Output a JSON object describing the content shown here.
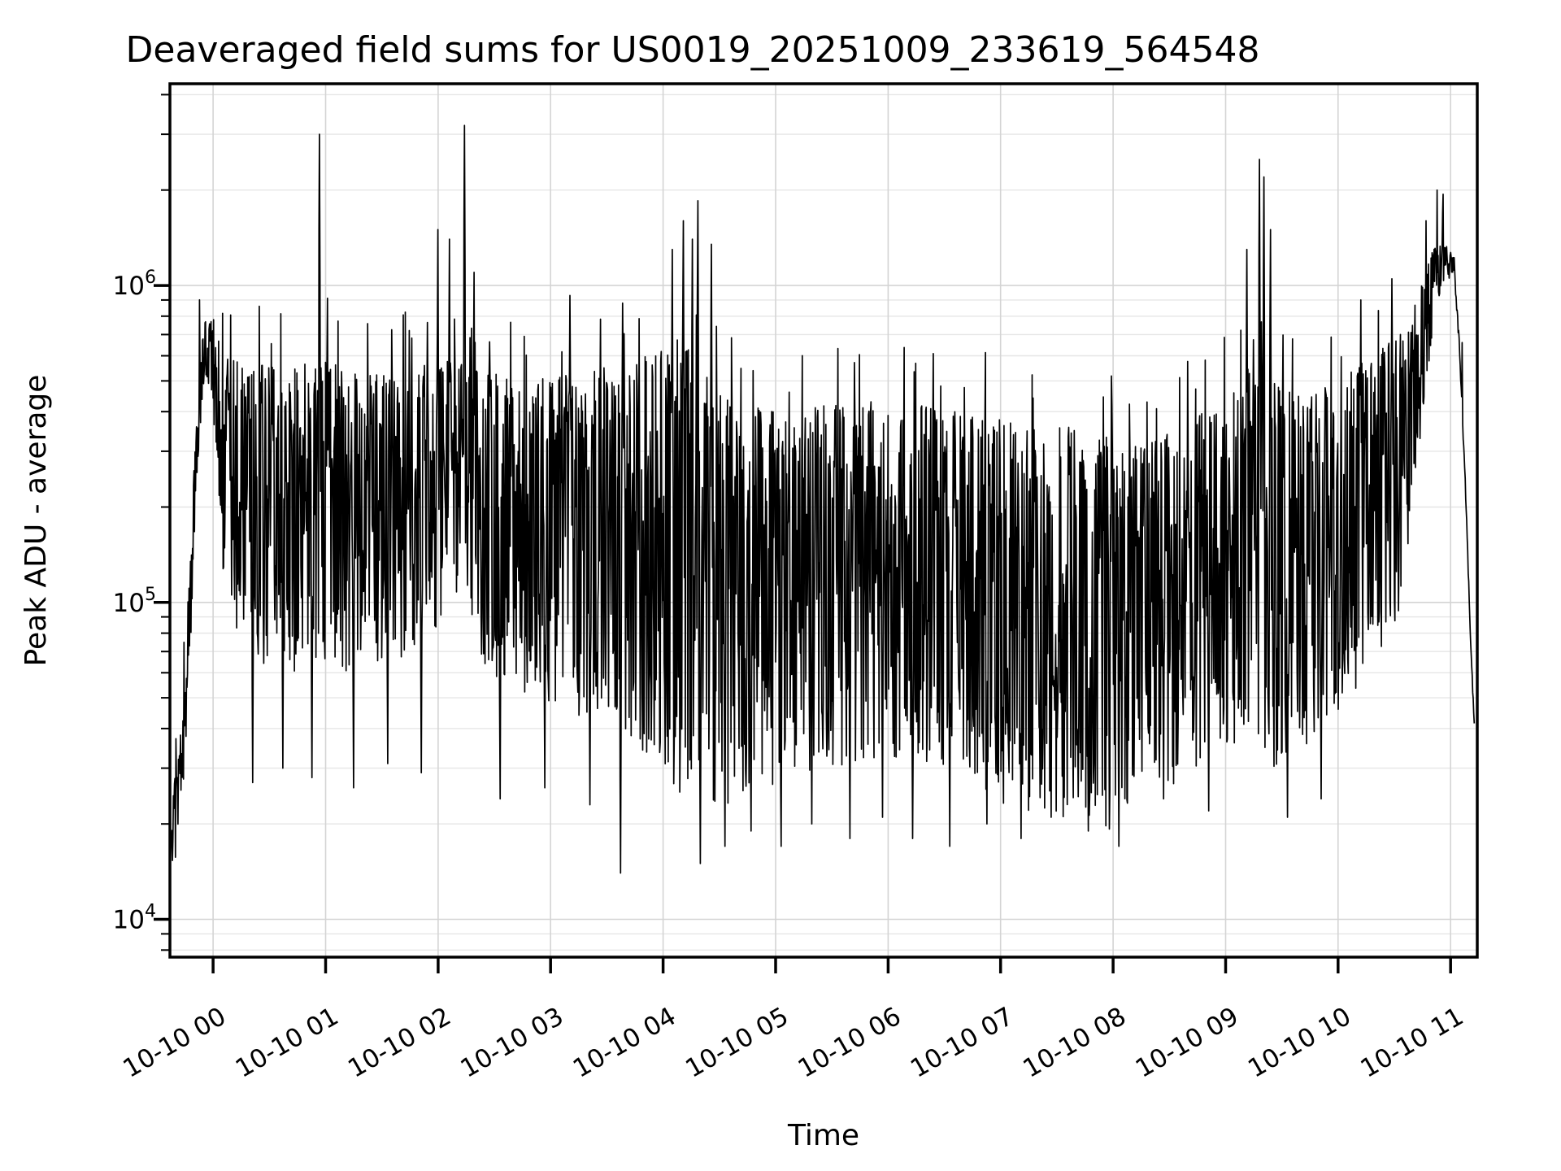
{
  "chart_data": {
    "type": "line",
    "title": "Deaveraged field sums for US0019_20251009_233619_564548",
    "xlabel": "Time",
    "ylabel": "Peak ADU - average",
    "y_scale": "log",
    "ylim": [
      7600,
      4330000
    ],
    "y_major_tick_exponents": [
      4,
      5,
      6
    ],
    "x_range_hours": [
      -0.384,
      11.237
    ],
    "x_ticks": [
      {
        "hour": 0,
        "label": "10-10 00"
      },
      {
        "hour": 1,
        "label": "10-10 01"
      },
      {
        "hour": 2,
        "label": "10-10 02"
      },
      {
        "hour": 3,
        "label": "10-10 03"
      },
      {
        "hour": 4,
        "label": "10-10 04"
      },
      {
        "hour": 5,
        "label": "10-10 05"
      },
      {
        "hour": 6,
        "label": "10-10 06"
      },
      {
        "hour": 7,
        "label": "10-10 07"
      },
      {
        "hour": 8,
        "label": "10-10 08"
      },
      {
        "hour": 9,
        "label": "10-10 09"
      },
      {
        "hour": 10,
        "label": "10-10 10"
      },
      {
        "hour": 11,
        "label": "10-10 11"
      }
    ],
    "grid": {
      "major_color": "#d4d4d4",
      "minor_color": "#e6e6e6",
      "shown": true
    },
    "line_color": "#000000",
    "legend": "none",
    "series_name": "peak ADU - average",
    "data_start_hours": -0.384,
    "data_end_hours": 11.21,
    "end_value": 41000,
    "start_value": 16000,
    "envelope_keyframes": [
      [
        -0.384,
        20000,
        12000
      ],
      [
        -0.34,
        30000,
        14000
      ],
      [
        -0.3,
        34000,
        20000
      ],
      [
        -0.25,
        65000,
        30000
      ],
      [
        -0.19,
        180000,
        80000
      ],
      [
        -0.13,
        550000,
        280000
      ],
      [
        -0.07,
        880000,
        500000
      ],
      [
        -0.02,
        860000,
        480000
      ],
      [
        0.03,
        720000,
        240000
      ],
      [
        0.1,
        600000,
        110000
      ],
      [
        0.3,
        560000,
        65000
      ],
      [
        0.7,
        560000,
        60000
      ],
      [
        1.0,
        580000,
        65000
      ],
      [
        1.4,
        520000,
        55000
      ],
      [
        1.8,
        540000,
        65000
      ],
      [
        2.1,
        620000,
        90000
      ],
      [
        2.4,
        540000,
        60000
      ],
      [
        2.8,
        500000,
        50000
      ],
      [
        3.2,
        530000,
        45000
      ],
      [
        3.6,
        560000,
        38000
      ],
      [
        3.95,
        620000,
        30000
      ],
      [
        4.2,
        700000,
        24000
      ],
      [
        4.4,
        520000,
        22000
      ],
      [
        4.7,
        420000,
        24000
      ],
      [
        5.1,
        400000,
        26000
      ],
      [
        5.6,
        430000,
        30000
      ],
      [
        6.1,
        430000,
        30000
      ],
      [
        6.6,
        400000,
        26000
      ],
      [
        7.1,
        380000,
        22000
      ],
      [
        7.6,
        360000,
        20000
      ],
      [
        8.1,
        320000,
        19000
      ],
      [
        8.5,
        340000,
        26000
      ],
      [
        8.9,
        420000,
        32000
      ],
      [
        9.2,
        550000,
        38000
      ],
      [
        9.4,
        500000,
        30000
      ],
      [
        9.7,
        440000,
        32000
      ],
      [
        10.0,
        500000,
        45000
      ],
      [
        10.3,
        600000,
        55000
      ],
      [
        10.55,
        700000,
        90000
      ],
      [
        10.72,
        950000,
        300000
      ],
      [
        10.85,
        1350000,
        750000
      ],
      [
        10.95,
        1350000,
        1000000
      ],
      [
        11.03,
        1250000,
        1100000
      ],
      [
        11.08,
        650000,
        600000
      ],
      [
        11.13,
        250000,
        230000
      ],
      [
        11.18,
        75000,
        70000
      ],
      [
        11.21,
        42000,
        40000
      ]
    ],
    "spikes_up": [
      [
        0.945,
        3000000
      ],
      [
        2.0,
        1500000
      ],
      [
        2.1,
        1400000
      ],
      [
        2.235,
        3200000
      ],
      [
        2.32,
        1100000
      ],
      [
        3.17,
        930000
      ],
      [
        3.64,
        880000
      ],
      [
        4.08,
        1300000
      ],
      [
        4.18,
        1600000
      ],
      [
        4.26,
        1400000
      ],
      [
        4.31,
        1850000
      ],
      [
        4.43,
        1350000
      ],
      [
        9.19,
        1300000
      ],
      [
        9.3,
        2500000
      ],
      [
        9.34,
        2200000
      ],
      [
        9.4,
        1500000
      ],
      [
        10.2,
        900000
      ],
      [
        10.48,
        1050000
      ],
      [
        10.78,
        1600000
      ],
      [
        10.88,
        2000000
      ],
      [
        10.93,
        1700000
      ]
    ],
    "spikes_down": [
      [
        0.35,
        27000
      ],
      [
        0.62,
        30000
      ],
      [
        0.88,
        28000
      ],
      [
        1.25,
        26000
      ],
      [
        1.55,
        31000
      ],
      [
        1.85,
        29000
      ],
      [
        2.55,
        24000
      ],
      [
        2.95,
        26000
      ],
      [
        3.35,
        23000
      ],
      [
        3.62,
        14000
      ],
      [
        4.33,
        15000
      ],
      [
        4.55,
        17000
      ],
      [
        4.78,
        19000
      ],
      [
        5.05,
        17000
      ],
      [
        5.32,
        20000
      ],
      [
        5.66,
        18000
      ],
      [
        5.95,
        21000
      ],
      [
        6.22,
        18000
      ],
      [
        6.55,
        17000
      ],
      [
        6.88,
        20000
      ],
      [
        7.18,
        18000
      ],
      [
        7.45,
        21000
      ],
      [
        7.78,
        19000
      ],
      [
        8.05,
        17000
      ],
      [
        8.45,
        24000
      ],
      [
        8.85,
        22000
      ],
      [
        9.55,
        21000
      ],
      [
        9.85,
        24000
      ]
    ],
    "noise_seed": 1337,
    "samples": 2600
  }
}
